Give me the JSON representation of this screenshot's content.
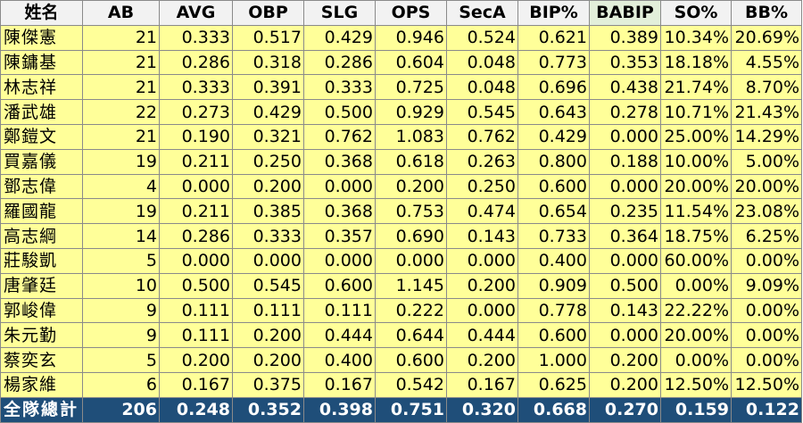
{
  "columns": [
    "姓名",
    "AB",
    "AVG",
    "OBP",
    "SLG",
    "OPS",
    "SecA",
    "BIP%",
    "BABIP",
    "SO%",
    "BB%"
  ],
  "rows": [
    [
      "陳傑憲",
      "21",
      "0.333",
      "0.517",
      "0.429",
      "0.946",
      "0.524",
      "0.621",
      "0.389",
      "10.34%",
      "20.69%"
    ],
    [
      "陳鏞基",
      "21",
      "0.286",
      "0.318",
      "0.286",
      "0.604",
      "0.048",
      "0.773",
      "0.353",
      "18.18%",
      "4.55%"
    ],
    [
      "林志祥",
      "21",
      "0.333",
      "0.391",
      "0.333",
      "0.725",
      "0.048",
      "0.696",
      "0.438",
      "21.74%",
      "8.70%"
    ],
    [
      "潘武雄",
      "22",
      "0.273",
      "0.429",
      "0.500",
      "0.929",
      "0.545",
      "0.643",
      "0.278",
      "10.71%",
      "21.43%"
    ],
    [
      "鄭鎧文",
      "21",
      "0.190",
      "0.321",
      "0.762",
      "1.083",
      "0.762",
      "0.429",
      "0.000",
      "25.00%",
      "14.29%"
    ],
    [
      "買嘉儀",
      "19",
      "0.211",
      "0.250",
      "0.368",
      "0.618",
      "0.263",
      "0.800",
      "0.188",
      "10.00%",
      "5.00%"
    ],
    [
      "鄧志偉",
      "4",
      "0.000",
      "0.200",
      "0.000",
      "0.200",
      "0.250",
      "0.600",
      "0.000",
      "20.00%",
      "20.00%"
    ],
    [
      "羅國龍",
      "19",
      "0.211",
      "0.385",
      "0.368",
      "0.753",
      "0.474",
      "0.654",
      "0.235",
      "11.54%",
      "23.08%"
    ],
    [
      "高志綱",
      "14",
      "0.286",
      "0.333",
      "0.357",
      "0.690",
      "0.143",
      "0.733",
      "0.364",
      "18.75%",
      "6.25%"
    ],
    [
      "莊駿凱",
      "5",
      "0.000",
      "0.000",
      "0.000",
      "0.000",
      "0.000",
      "0.400",
      "0.000",
      "60.00%",
      "0.00%"
    ],
    [
      "唐肇廷",
      "10",
      "0.500",
      "0.545",
      "0.600",
      "1.145",
      "0.200",
      "0.909",
      "0.500",
      "0.00%",
      "9.09%"
    ],
    [
      "郭峻偉",
      "9",
      "0.111",
      "0.111",
      "0.111",
      "0.222",
      "0.000",
      "0.778",
      "0.143",
      "22.22%",
      "0.00%"
    ],
    [
      "朱元勤",
      "9",
      "0.111",
      "0.200",
      "0.444",
      "0.644",
      "0.444",
      "0.600",
      "0.000",
      "20.00%",
      "0.00%"
    ],
    [
      "蔡奕玄",
      "5",
      "0.200",
      "0.200",
      "0.400",
      "0.600",
      "0.200",
      "1.000",
      "0.200",
      "0.00%",
      "0.00%"
    ],
    [
      "楊家維",
      "6",
      "0.167",
      "0.375",
      "0.167",
      "0.542",
      "0.167",
      "0.625",
      "0.200",
      "12.50%",
      "12.50%"
    ]
  ],
  "total": [
    "全隊總計",
    "206",
    "0.248",
    "0.352",
    "0.398",
    "0.751",
    "0.320",
    "0.668",
    "0.270",
    "0.159",
    "0.122"
  ],
  "colors": {
    "header_bg": "#f2f2f2",
    "header_highlight_bg": "#e2efda",
    "row_bg": "#ffff99",
    "total_bg": "#1f4e79",
    "total_text": "#ffffff"
  }
}
